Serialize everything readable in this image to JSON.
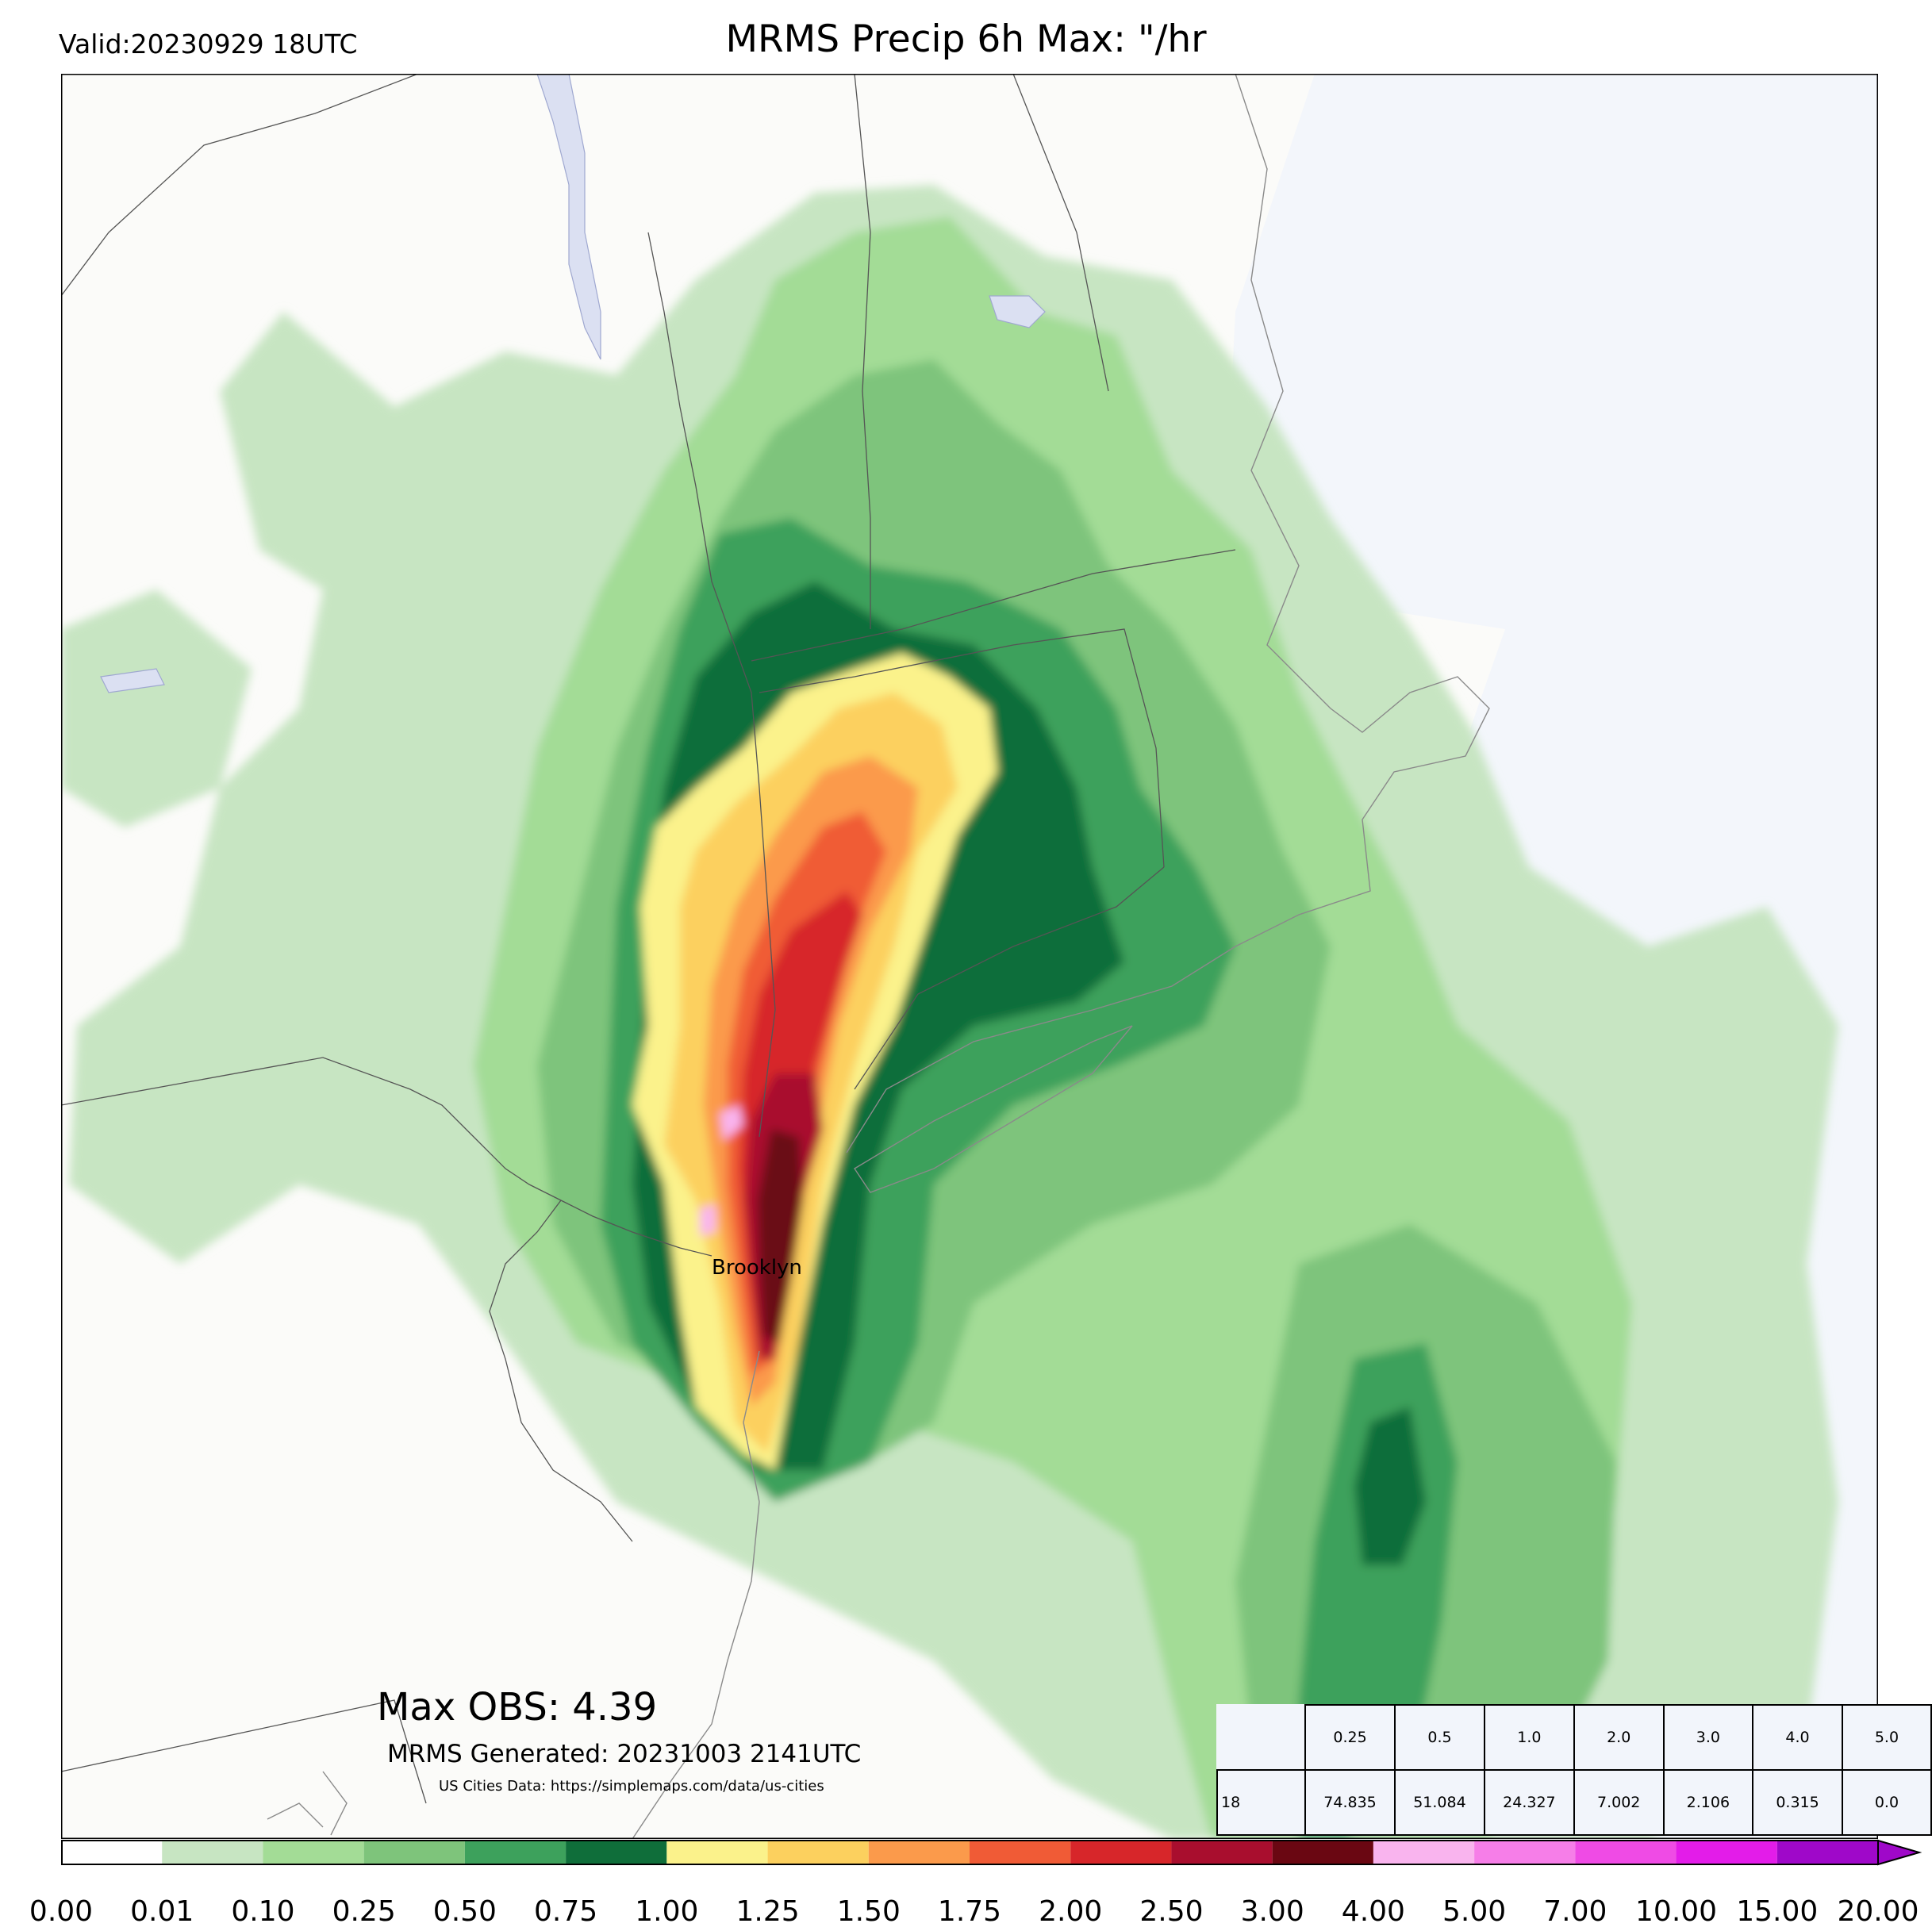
{
  "valid": "Valid:20230929 18UTC",
  "title": "MRMS Precip 6h Max: \"/hr",
  "city": "Brooklyn",
  "max_obs": "Max OBS: 4.39",
  "generated": "MRMS Generated: 20231003 2141UTC",
  "city_data": "US Cities Data: https://simplemaps.com/data/us-cities",
  "stats": {
    "thresholds": [
      "0.25",
      "0.5",
      "1.0",
      "2.0",
      "3.0",
      "4.0",
      "5.0"
    ],
    "row_label": "18",
    "values": [
      "74.835",
      "51.084",
      "24.327",
      "7.002",
      "2.106",
      "0.315",
      "0.0"
    ]
  },
  "colorbar": {
    "ticks": [
      "0.00",
      "0.01",
      "0.10",
      "0.25",
      "0.50",
      "0.75",
      "1.00",
      "1.25",
      "1.50",
      "1.75",
      "2.00",
      "2.50",
      "3.00",
      "4.00",
      "5.00",
      "7.00",
      "10.00",
      "15.00",
      "20.00"
    ],
    "colors": [
      "#ffffff",
      "#c7e5c2",
      "#a3dc96",
      "#7ec47b",
      "#3da15c",
      "#0f6e3a",
      "#fbf28b",
      "#fcd05e",
      "#fb9a4b",
      "#f05b36",
      "#d7262a",
      "#a90e2e",
      "#6a0712",
      "#f9b4ee",
      "#f67ee8",
      "#ef4be5",
      "#e31ce9",
      "#9f08c9"
    ]
  },
  "map_colors": {
    "land": "#fbfbf9",
    "ocean": "#f3f6fb",
    "water": "#dbe0f2",
    "border": "#555555"
  }
}
